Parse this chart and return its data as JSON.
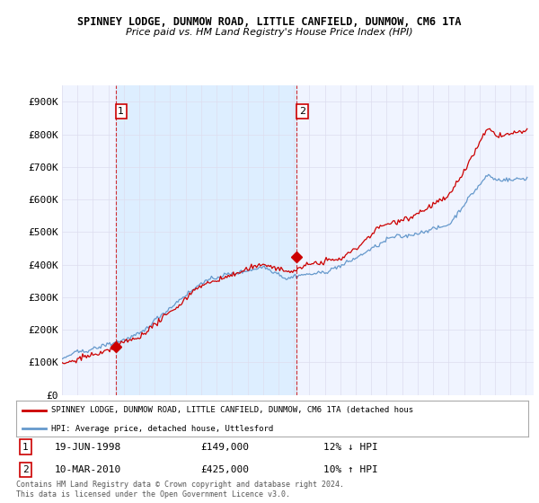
{
  "title": "SPINNEY LODGE, DUNMOW ROAD, LITTLE CANFIELD, DUNMOW, CM6 1TA",
  "subtitle": "Price paid vs. HM Land Registry's House Price Index (HPI)",
  "legend_line1": "SPINNEY LODGE, DUNMOW ROAD, LITTLE CANFIELD, DUNMOW, CM6 1TA (detached hous",
  "legend_line2": "HPI: Average price, detached house, Uttlesford",
  "footnote": "Contains HM Land Registry data © Crown copyright and database right 2024.\nThis data is licensed under the Open Government Licence v3.0.",
  "sale1_label": "1",
  "sale1_date": "19-JUN-1998",
  "sale1_price": "£149,000",
  "sale1_hpi": "12% ↓ HPI",
  "sale2_label": "2",
  "sale2_date": "10-MAR-2010",
  "sale2_price": "£425,000",
  "sale2_hpi": "10% ↑ HPI",
  "red_color": "#cc0000",
  "blue_color": "#6699cc",
  "shade_color": "#ddeeff",
  "dashed_red": "#cc0000",
  "ylim": [
    0,
    950000
  ],
  "yticks": [
    0,
    100000,
    200000,
    300000,
    400000,
    500000,
    600000,
    700000,
    800000,
    900000
  ],
  "ytick_labels": [
    "£0",
    "£100K",
    "£200K",
    "£300K",
    "£400K",
    "£500K",
    "£600K",
    "£700K",
    "£800K",
    "£900K"
  ],
  "sale1_x": 1998.47,
  "sale1_y": 149000,
  "sale2_x": 2010.19,
  "sale2_y": 425000,
  "vline1_x": 1998.47,
  "vline2_x": 2010.19,
  "xlim": [
    1995.0,
    2025.5
  ],
  "xtick_positions": [
    1995,
    1996,
    1997,
    1998,
    1999,
    2000,
    2001,
    2002,
    2003,
    2004,
    2005,
    2006,
    2007,
    2008,
    2009,
    2010,
    2011,
    2012,
    2013,
    2014,
    2015,
    2016,
    2017,
    2018,
    2019,
    2020,
    2021,
    2022,
    2023,
    2024,
    2025
  ],
  "bg_color": "#ffffff",
  "grid_color": "#ddddee",
  "plot_bg": "#f0f4ff"
}
